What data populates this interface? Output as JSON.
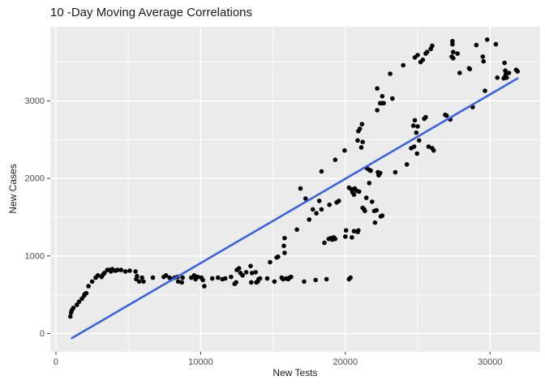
{
  "colors": {
    "background": "#FFFFFF",
    "panel": "#EBEBEB",
    "grid": "#FFFFFF",
    "point": "#000000",
    "trend": "#3B62E0",
    "tick_text": "#4D4D4D",
    "title_text": "#1A1A1A",
    "tick_mark": "#333333"
  },
  "chart_data": {
    "type": "scatter",
    "title": "10 -Day Moving Average Correlations",
    "xlabel": "New Tests",
    "ylabel": "New Cases",
    "legend": "none",
    "grid": "on",
    "x_range": [
      -390,
      33460
    ],
    "y_range": [
      -235,
      3956
    ],
    "x_ticks": [
      0,
      10000,
      20000,
      30000
    ],
    "x_minor": [
      5000,
      15000,
      25000
    ],
    "y_ticks": [
      0,
      1000,
      2000,
      3000
    ],
    "y_minor": [
      500,
      1500,
      2500,
      3500
    ],
    "trend_line": {
      "shape": "linear",
      "x1": 1100,
      "y1": -60,
      "x2": 31900,
      "y2": 3290
    },
    "points": [
      [
        1000,
        220
      ],
      [
        1050,
        270
      ],
      [
        1100,
        300
      ],
      [
        1200,
        330
      ],
      [
        1450,
        370
      ],
      [
        1600,
        410
      ],
      [
        1800,
        450
      ],
      [
        1950,
        490
      ],
      [
        2000,
        510
      ],
      [
        2100,
        520
      ],
      [
        2250,
        610
      ],
      [
        2500,
        670
      ],
      [
        2750,
        720
      ],
      [
        2900,
        750
      ],
      [
        3150,
        730
      ],
      [
        3250,
        760
      ],
      [
        3350,
        780
      ],
      [
        3550,
        820
      ],
      [
        3700,
        820
      ],
      [
        3800,
        800
      ],
      [
        3900,
        830
      ],
      [
        4100,
        810
      ],
      [
        4250,
        820
      ],
      [
        4500,
        820
      ],
      [
        4800,
        800
      ],
      [
        5100,
        810
      ],
      [
        5500,
        800
      ],
      [
        5550,
        700
      ],
      [
        5600,
        740
      ],
      [
        5750,
        670
      ],
      [
        5950,
        720
      ],
      [
        6050,
        670
      ],
      [
        6700,
        720
      ],
      [
        7450,
        730
      ],
      [
        7600,
        750
      ],
      [
        7850,
        720
      ],
      [
        7950,
        700
      ],
      [
        8200,
        720
      ],
      [
        8400,
        730
      ],
      [
        8450,
        670
      ],
      [
        8700,
        660
      ],
      [
        8750,
        720
      ],
      [
        9350,
        720
      ],
      [
        9550,
        750
      ],
      [
        9650,
        700
      ],
      [
        9800,
        730
      ],
      [
        10050,
        720
      ],
      [
        10150,
        690
      ],
      [
        10250,
        610
      ],
      [
        10800,
        710
      ],
      [
        11200,
        720
      ],
      [
        11500,
        700
      ],
      [
        11700,
        710
      ],
      [
        12100,
        730
      ],
      [
        12350,
        640
      ],
      [
        12450,
        660
      ],
      [
        12500,
        820
      ],
      [
        12650,
        840
      ],
      [
        12750,
        780
      ],
      [
        12900,
        750
      ],
      [
        13150,
        790
      ],
      [
        13450,
        870
      ],
      [
        13500,
        660
      ],
      [
        13550,
        780
      ],
      [
        13800,
        790
      ],
      [
        13850,
        660
      ],
      [
        13950,
        670
      ],
      [
        14000,
        700
      ],
      [
        14100,
        710
      ],
      [
        14600,
        710
      ],
      [
        14800,
        920
      ],
      [
        15100,
        670
      ],
      [
        15250,
        980
      ],
      [
        15350,
        990
      ],
      [
        15600,
        720
      ],
      [
        15700,
        700
      ],
      [
        15750,
        1130
      ],
      [
        15800,
        1040
      ],
      [
        15800,
        1230
      ],
      [
        15900,
        710
      ],
      [
        16050,
        700
      ],
      [
        16150,
        720
      ],
      [
        16250,
        730
      ],
      [
        16650,
        1340
      ],
      [
        17150,
        670
      ],
      [
        17950,
        690
      ],
      [
        18550,
        1170
      ],
      [
        18700,
        700
      ],
      [
        18850,
        1220
      ],
      [
        19000,
        1230
      ],
      [
        19100,
        1210
      ],
      [
        19200,
        1240
      ],
      [
        19300,
        1220
      ],
      [
        20000,
        1250
      ],
      [
        20050,
        1330
      ],
      [
        20250,
        700
      ],
      [
        20350,
        720
      ],
      [
        20450,
        1240
      ],
      [
        20600,
        1320
      ],
      [
        20850,
        1310
      ],
      [
        20900,
        1330
      ],
      [
        16900,
        1870
      ],
      [
        17250,
        1740
      ],
      [
        17500,
        1470
      ],
      [
        17750,
        1600
      ],
      [
        18000,
        1550
      ],
      [
        18200,
        1710
      ],
      [
        18350,
        1600
      ],
      [
        18350,
        2090
      ],
      [
        18900,
        1660
      ],
      [
        19300,
        2240
      ],
      [
        19400,
        1690
      ],
      [
        19550,
        1710
      ],
      [
        19950,
        2360
      ],
      [
        20250,
        1880
      ],
      [
        20400,
        1860
      ],
      [
        20500,
        1820
      ],
      [
        20600,
        1790
      ],
      [
        20650,
        1870
      ],
      [
        20800,
        1840
      ],
      [
        20950,
        1830
      ],
      [
        21000,
        2640
      ],
      [
        21150,
        2700
      ],
      [
        21200,
        2470
      ],
      [
        21100,
        2400
      ],
      [
        21200,
        1620
      ],
      [
        21300,
        1600
      ],
      [
        21350,
        1580
      ],
      [
        21450,
        1750
      ],
      [
        21500,
        2130
      ],
      [
        21650,
        2110
      ],
      [
        21650,
        1940
      ],
      [
        21750,
        2100
      ],
      [
        21850,
        1700
      ],
      [
        20850,
        2490
      ],
      [
        20900,
        2610
      ],
      [
        22000,
        1580
      ],
      [
        22050,
        1430
      ],
      [
        22150,
        1590
      ],
      [
        22250,
        2080
      ],
      [
        22300,
        2040
      ],
      [
        22350,
        2060
      ],
      [
        22400,
        2070
      ],
      [
        22450,
        1510
      ],
      [
        22550,
        1520
      ],
      [
        22200,
        2880
      ],
      [
        22200,
        3160
      ],
      [
        22400,
        2970
      ],
      [
        22550,
        2970
      ],
      [
        22550,
        3060
      ],
      [
        22650,
        2970
      ],
      [
        23100,
        3350
      ],
      [
        23250,
        3030
      ],
      [
        23450,
        2080
      ],
      [
        24000,
        3460
      ],
      [
        24250,
        2180
      ],
      [
        24550,
        2390
      ],
      [
        24700,
        2680
      ],
      [
        24750,
        2410
      ],
      [
        24800,
        2750
      ],
      [
        24900,
        2590
      ],
      [
        24950,
        2320
      ],
      [
        25000,
        2670
      ],
      [
        25100,
        2490
      ],
      [
        25450,
        2770
      ],
      [
        25550,
        2790
      ],
      [
        25750,
        2410
      ],
      [
        26000,
        2390
      ],
      [
        26100,
        2360
      ],
      [
        26900,
        2820
      ],
      [
        27000,
        2810
      ],
      [
        27250,
        2760
      ],
      [
        24800,
        3560
      ],
      [
        25000,
        3590
      ],
      [
        25200,
        3500
      ],
      [
        25350,
        3530
      ],
      [
        25550,
        3610
      ],
      [
        25650,
        3630
      ],
      [
        25900,
        3670
      ],
      [
        26000,
        3710
      ],
      [
        27350,
        3570
      ],
      [
        27400,
        3770
      ],
      [
        27400,
        3730
      ],
      [
        27450,
        3630
      ],
      [
        27450,
        3550
      ],
      [
        27750,
        3610
      ],
      [
        27900,
        3360
      ],
      [
        28550,
        3420
      ],
      [
        28600,
        3410
      ],
      [
        28800,
        2920
      ],
      [
        29050,
        3720
      ],
      [
        29500,
        3570
      ],
      [
        29550,
        3510
      ],
      [
        29650,
        3130
      ],
      [
        29800,
        3790
      ],
      [
        30400,
        3730
      ],
      [
        30500,
        3300
      ],
      [
        30950,
        3290
      ],
      [
        31000,
        3490
      ],
      [
        31050,
        3390
      ],
      [
        31050,
        3320
      ],
      [
        31100,
        3350
      ],
      [
        31150,
        3300
      ],
      [
        31300,
        3360
      ],
      [
        31800,
        3400
      ],
      [
        31900,
        3380
      ]
    ]
  }
}
